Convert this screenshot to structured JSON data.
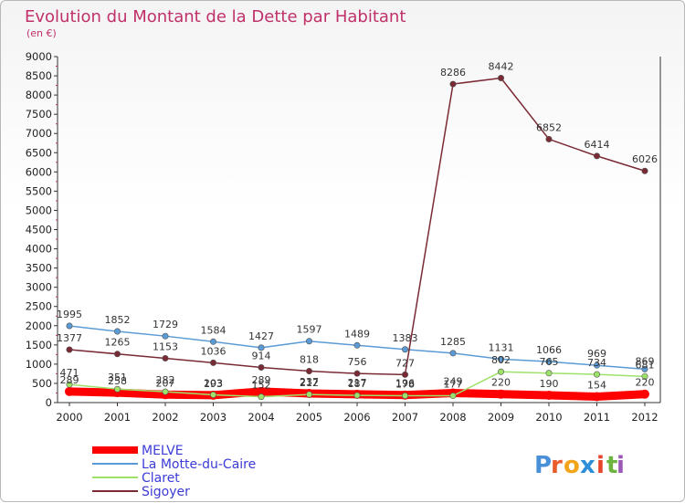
{
  "chart_data": {
    "type": "line",
    "title": "Evolution du Montant de la Dette par Habitant",
    "subtitle": "(en €)",
    "xlabel": "",
    "ylabel": "",
    "x": [
      "2000",
      "2001",
      "2002",
      "2003",
      "2004",
      "2005",
      "2006",
      "2007",
      "2008",
      "2009",
      "2010",
      "2011",
      "2012"
    ],
    "ylim": [
      0,
      9000
    ],
    "yticks": [
      0,
      500,
      1000,
      1500,
      2000,
      2500,
      3000,
      3500,
      4000,
      4500,
      5000,
      5500,
      6000,
      6500,
      7000,
      7500,
      8000,
      8500,
      9000
    ],
    "grid": false,
    "legend_position": "bottom-left",
    "series": [
      {
        "name": "MELVE",
        "color": "#ff0000",
        "values": [
          289,
          258,
          207,
          193,
          289,
          237,
          217,
          196,
          249,
          220,
          190,
          154,
          220
        ],
        "labels": [
          "289",
          "258",
          "207",
          "193",
          "289",
          "237",
          "217",
          "196",
          "249",
          "220",
          "190",
          "154",
          "220"
        ]
      },
      {
        "name": "La Motte-du-Caire",
        "color": "#5b9bd5",
        "values": [
          1995,
          1852,
          1729,
          1584,
          1427,
          1597,
          1489,
          1383,
          1285,
          1131,
          1066,
          969,
          869
        ],
        "labels": [
          "1995",
          "1852",
          "1729",
          "1584",
          "1427",
          "1597",
          "1489",
          "1383",
          "1285",
          "1131",
          "1066",
          "969",
          "869"
        ]
      },
      {
        "name": "Claret",
        "color": "#9ee26a",
        "values": [
          471,
          351,
          282,
          203,
          152,
          212,
          187,
          178,
          177,
          802,
          765,
          734,
          681
        ],
        "labels": [
          "471",
          "351",
          "282",
          "203",
          "152",
          "212",
          "187",
          "178",
          "177",
          "802",
          "765",
          "734",
          "681"
        ]
      },
      {
        "name": "Sigoyer",
        "color": "#7a2a35",
        "values": [
          1377,
          1265,
          1153,
          1036,
          914,
          818,
          756,
          727,
          8286,
          8442,
          6852,
          6414,
          6026
        ],
        "labels": [
          "1377",
          "1265",
          "1153",
          "1036",
          "914",
          "818",
          "756",
          "727",
          "8286",
          "8442",
          "6852",
          "6414",
          "6026"
        ]
      }
    ]
  },
  "logo": {
    "letters": [
      "P",
      "r",
      "o",
      "x",
      "i",
      "t",
      "i"
    ],
    "colors": [
      "#4a90d9",
      "#e85c2b",
      "#f2a51a",
      "#2e8fd8",
      "#e8442b",
      "#6db33f",
      "#9b59b6"
    ]
  }
}
